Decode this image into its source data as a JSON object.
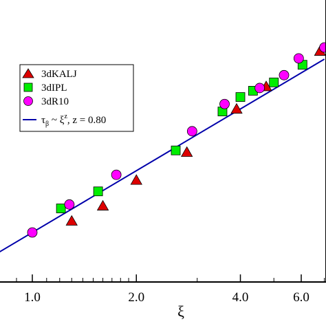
{
  "chart_data": {
    "type": "scatter",
    "x_scale": "log",
    "y_scale": "log",
    "xlabel": "ξ",
    "ylabel": "",
    "xlim": [
      0.78,
      7.0
    ],
    "x_ticks": [
      {
        "value": 1.0,
        "label": "1.0"
      },
      {
        "value": 2.0,
        "label": "2.0"
      },
      {
        "value": 4.0,
        "label": "4.0"
      },
      {
        "value": 6.0,
        "label": "6.0"
      }
    ],
    "legend_position": "upper-left",
    "series": [
      {
        "name": "3dKALJ",
        "marker": "triangle",
        "color": "#dd0000",
        "points": [
          {
            "x": 1.3,
            "y": 1.24
          },
          {
            "x": 1.6,
            "y": 1.42
          },
          {
            "x": 2.0,
            "y": 1.79
          },
          {
            "x": 2.8,
            "y": 2.3
          },
          {
            "x": 3.9,
            "y": 3.39
          },
          {
            "x": 4.75,
            "y": 4.15
          },
          {
            "x": 6.8,
            "y": 5.7
          }
        ]
      },
      {
        "name": "3dIPL",
        "marker": "square",
        "color": "#00ee00",
        "points": [
          {
            "x": 1.21,
            "y": 1.39
          },
          {
            "x": 1.55,
            "y": 1.62
          },
          {
            "x": 2.6,
            "y": 2.34
          },
          {
            "x": 3.55,
            "y": 3.32
          },
          {
            "x": 4.0,
            "y": 3.78
          },
          {
            "x": 4.35,
            "y": 4.0
          },
          {
            "x": 5.0,
            "y": 4.31
          },
          {
            "x": 6.05,
            "y": 5.05
          }
        ]
      },
      {
        "name": "3dR10",
        "marker": "circle",
        "color": "#ff00ff",
        "points": [
          {
            "x": 1.0,
            "y": 1.12
          },
          {
            "x": 1.28,
            "y": 1.44
          },
          {
            "x": 1.75,
            "y": 1.88
          },
          {
            "x": 2.9,
            "y": 2.78
          },
          {
            "x": 3.6,
            "y": 3.55
          },
          {
            "x": 4.55,
            "y": 4.1
          },
          {
            "x": 5.35,
            "y": 4.6
          },
          {
            "x": 5.9,
            "y": 5.35
          },
          {
            "x": 7.0,
            "y": 5.9
          }
        ]
      },
      {
        "name": "τβ ~ ξz, z = 0.80",
        "marker": "line",
        "color": "#0000aa",
        "exponent": 0.8
      }
    ]
  },
  "legend": {
    "items": [
      {
        "label": "3dKALJ"
      },
      {
        "label": "3dIPL"
      },
      {
        "label": "3dR10"
      },
      {
        "label_main": "τ",
        "label_sub1": "β",
        "label_mid": " ~ ξ",
        "label_sup": "z",
        "label_tail": ", z = 0.80"
      }
    ]
  }
}
